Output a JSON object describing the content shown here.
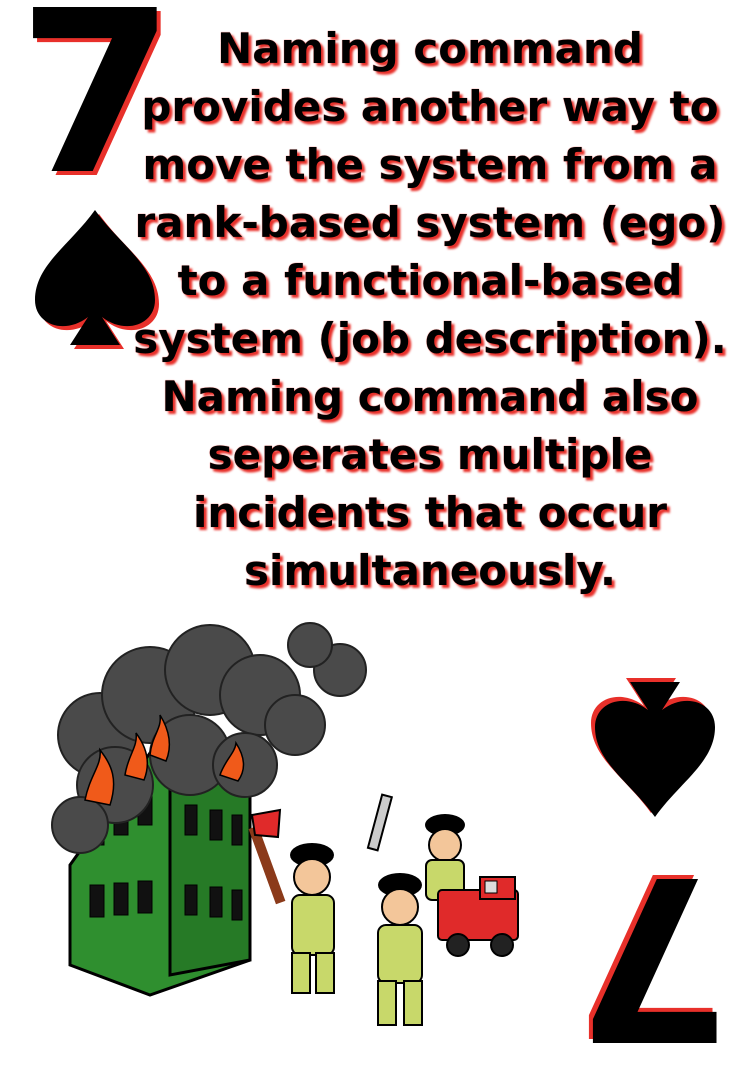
{
  "card": {
    "rank": "7",
    "suit": "spade",
    "message": "Naming command provides another way to move the system from a rank-based system (ego) to a functional-based system (job description). Naming command also seperates multiple incidents that occur simultaneously."
  },
  "colors": {
    "shadow": "#e8302a",
    "building": "#2f8f2f",
    "smoke": "#4a4a4a",
    "flame": "#f05a1a",
    "uniform": "#c8d86a",
    "truck": "#e02a2a"
  },
  "illustration": {
    "icons": [
      "burning-building-icon",
      "smoke-icon",
      "firefighter-icon",
      "fire-truck-icon",
      "axe-icon",
      "hose-nozzle-icon"
    ]
  }
}
